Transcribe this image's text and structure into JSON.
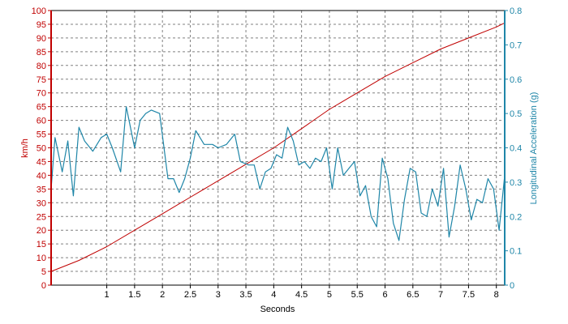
{
  "chart_data": {
    "type": "line",
    "xlabel": "Seconds",
    "ylabel_left": "km/h",
    "ylabel_right": "Longitudinal Acceleration (g)",
    "xlim": [
      0,
      8.15
    ],
    "ylim_left": [
      0,
      100
    ],
    "ylim_right": [
      0,
      0.8
    ],
    "x_ticks": [
      "1",
      "1.5",
      "2",
      "2.5",
      "3",
      "3.5",
      "4",
      "4.5",
      "5",
      "5.5",
      "6",
      "6.5",
      "7",
      "7.5",
      "8"
    ],
    "y_left_ticks": [
      "0",
      "5",
      "10",
      "15",
      "20",
      "25",
      "30",
      "35",
      "40",
      "45",
      "50",
      "55",
      "60",
      "65",
      "70",
      "75",
      "80",
      "85",
      "90",
      "95",
      "100"
    ],
    "y_right_ticks": [
      "0",
      "0.1",
      "0.2",
      "0.3",
      "0.4",
      "0.5",
      "0.6",
      "0.7",
      "0.8"
    ],
    "grid": true,
    "colors": {
      "speed": "#c00000",
      "accel": "#1f86a8",
      "grid": "#808080",
      "frame": "#000000"
    },
    "series": [
      {
        "axis": "left",
        "x": [
          0,
          0.5,
          1,
          1.5,
          2,
          2.5,
          3,
          3.5,
          4,
          4.5,
          5,
          5.5,
          6,
          6.5,
          7,
          7.5,
          8,
          8.15
        ],
        "values": [
          5,
          9,
          14,
          20,
          26,
          32,
          38,
          44,
          50,
          57,
          64,
          70,
          76,
          81,
          86,
          90,
          94,
          95.5
        ]
      },
      {
        "axis": "right",
        "x": [
          0,
          0.07,
          0.2,
          0.3,
          0.4,
          0.5,
          0.6,
          0.75,
          0.9,
          1.0,
          1.1,
          1.25,
          1.35,
          1.5,
          1.6,
          1.7,
          1.8,
          1.95,
          2.1,
          2.2,
          2.3,
          2.4,
          2.5,
          2.6,
          2.75,
          2.9,
          3.0,
          3.15,
          3.3,
          3.4,
          3.55,
          3.65,
          3.75,
          3.85,
          3.95,
          4.05,
          4.15,
          4.25,
          4.35,
          4.45,
          4.55,
          4.65,
          4.75,
          4.85,
          4.95,
          5.05,
          5.15,
          5.25,
          5.35,
          5.45,
          5.55,
          5.65,
          5.75,
          5.85,
          5.95,
          6.05,
          6.15,
          6.25,
          6.35,
          6.45,
          6.55,
          6.65,
          6.75,
          6.85,
          6.95,
          7.05,
          7.15,
          7.25,
          7.35,
          7.45,
          7.55,
          7.65,
          7.75,
          7.85,
          7.95,
          8.05,
          8.15
        ],
        "values": [
          0.28,
          0.43,
          0.33,
          0.42,
          0.26,
          0.46,
          0.42,
          0.39,
          0.43,
          0.44,
          0.4,
          0.33,
          0.52,
          0.4,
          0.48,
          0.5,
          0.51,
          0.5,
          0.31,
          0.31,
          0.27,
          0.31,
          0.37,
          0.45,
          0.41,
          0.41,
          0.4,
          0.41,
          0.44,
          0.36,
          0.35,
          0.35,
          0.28,
          0.33,
          0.34,
          0.38,
          0.37,
          0.46,
          0.42,
          0.35,
          0.36,
          0.34,
          0.37,
          0.36,
          0.4,
          0.28,
          0.4,
          0.32,
          0.34,
          0.36,
          0.26,
          0.29,
          0.2,
          0.17,
          0.37,
          0.31,
          0.18,
          0.13,
          0.25,
          0.34,
          0.33,
          0.21,
          0.2,
          0.28,
          0.23,
          0.34,
          0.14,
          0.23,
          0.35,
          0.28,
          0.19,
          0.25,
          0.24,
          0.31,
          0.28,
          0.16,
          0.32
        ]
      }
    ]
  }
}
